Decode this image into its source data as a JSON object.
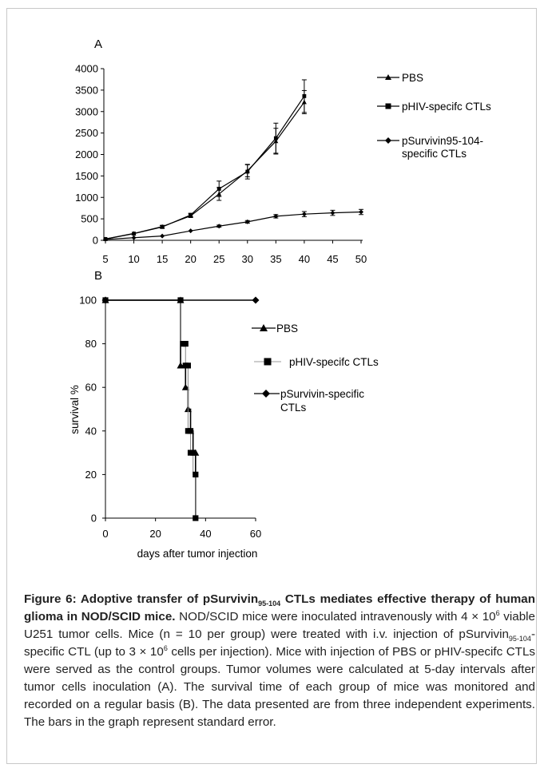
{
  "chart_data": [
    {
      "type": "line",
      "panel_label": "A",
      "x": [
        5,
        10,
        15,
        20,
        25,
        30,
        35,
        40,
        45,
        50
      ],
      "xlim": [
        5,
        50
      ],
      "ylim": [
        0,
        4000
      ],
      "x_ticks": [
        "5",
        "10",
        "15",
        "20",
        "25",
        "30",
        "35",
        "40",
        "45",
        "50"
      ],
      "y_ticks": [
        "0",
        "500",
        "1000",
        "1500",
        "2000",
        "2500",
        "3000",
        "3500",
        "4000"
      ],
      "xlabel": "",
      "ylabel": "",
      "legend_position": "right",
      "grid": false,
      "series": [
        {
          "name": "PBS",
          "marker": "triangle",
          "points": [
            [
              5,
              30
            ],
            [
              10,
              160
            ],
            [
              15,
              320
            ],
            [
              20,
              570
            ],
            [
              25,
              1080
            ],
            [
              30,
              1620
            ],
            [
              35,
              2310
            ],
            [
              40,
              3220
            ]
          ],
          "error": [
            10,
            20,
            30,
            40,
            150,
            140,
            300,
            270
          ]
        },
        {
          "name": "pHIV-specifc CTLs",
          "marker": "square",
          "points": [
            [
              5,
              30
            ],
            [
              10,
              155
            ],
            [
              15,
              310
            ],
            [
              20,
              590
            ],
            [
              25,
              1200
            ],
            [
              30,
              1600
            ],
            [
              35,
              2380
            ],
            [
              40,
              3360
            ]
          ],
          "error": [
            10,
            20,
            30,
            40,
            180,
            170,
            350,
            380
          ]
        },
        {
          "name": "pSurvivin95-104-specific CTLs",
          "marker": "diamond",
          "points": [
            [
              5,
              20
            ],
            [
              10,
              60
            ],
            [
              15,
              100
            ],
            [
              20,
              220
            ],
            [
              25,
              330
            ],
            [
              30,
              430
            ],
            [
              35,
              560
            ],
            [
              40,
              610
            ],
            [
              45,
              640
            ],
            [
              50,
              660
            ]
          ],
          "error": [
            5,
            10,
            15,
            20,
            25,
            30,
            40,
            60,
            60,
            60
          ]
        }
      ]
    },
    {
      "type": "line",
      "panel_label": "B",
      "step": true,
      "xlim": [
        0,
        60
      ],
      "ylim": [
        0,
        100
      ],
      "x_ticks": [
        "0",
        "20",
        "40",
        "60"
      ],
      "y_ticks": [
        "0",
        "20",
        "40",
        "60",
        "80",
        "100"
      ],
      "xlabel": "days after tumor injection",
      "ylabel": "survival %",
      "legend_position": "right",
      "grid": false,
      "series": [
        {
          "name": "PBS",
          "marker": "triangle",
          "points": [
            [
              0,
              100
            ],
            [
              30,
              100
            ],
            [
              30,
              70
            ],
            [
              32,
              70
            ],
            [
              32,
              60
            ],
            [
              33,
              60
            ],
            [
              33,
              50
            ],
            [
              34,
              50
            ],
            [
              34,
              40
            ],
            [
              35,
              40
            ],
            [
              35,
              30
            ],
            [
              36,
              30
            ],
            [
              36,
              0
            ]
          ],
          "marker_points": [
            [
              0,
              100
            ],
            [
              30,
              100
            ],
            [
              30,
              70
            ],
            [
              32,
              60
            ],
            [
              33,
              50
            ],
            [
              34,
              40
            ],
            [
              36,
              30
            ]
          ]
        },
        {
          "name": "pHIV-specifc CTLs",
          "marker": "square",
          "points": [
            [
              0,
              100
            ],
            [
              30,
              100
            ],
            [
              30,
              80
            ],
            [
              32,
              80
            ],
            [
              32,
              70
            ],
            [
              33,
              70
            ],
            [
              33,
              40
            ],
            [
              34,
              40
            ],
            [
              34,
              30
            ],
            [
              35,
              30
            ],
            [
              35,
              20
            ],
            [
              36,
              20
            ],
            [
              36,
              0
            ]
          ],
          "marker_points": [
            [
              0,
              100
            ],
            [
              30,
              100
            ],
            [
              31,
              80
            ],
            [
              32,
              80
            ],
            [
              32,
              70
            ],
            [
              33,
              70
            ],
            [
              33,
              40
            ],
            [
              34,
              40
            ],
            [
              34,
              30
            ],
            [
              35,
              30
            ],
            [
              36,
              20
            ],
            [
              36,
              0
            ]
          ]
        },
        {
          "name": "pSurvivin-specific CTLs",
          "marker": "diamond",
          "points": [
            [
              0,
              100
            ],
            [
              60,
              100
            ]
          ],
          "marker_points": [
            [
              0,
              100
            ],
            [
              60,
              100
            ]
          ]
        }
      ]
    }
  ],
  "legend_a": {
    "pbs": "PBS",
    "phiv": "pHIV-specifc CTLs",
    "psurv_line1": "pSurvivin95-104-",
    "psurv_line2": "specific CTLs"
  },
  "legend_b": {
    "pbs": "PBS",
    "phiv": "pHIV-specifc CTLs",
    "psurv_line1": "pSurvivin-specific",
    "psurv_line2": "CTLs"
  },
  "caption": {
    "title_prefix": "Figure 6: Adoptive transfer of pSurvivin",
    "title_sub": "95-104",
    "title_mid": " CTLs mediates effective therapy of human glioma in NOD/SCID mice.",
    "text_1": " NOD/SCID mice were inoculated intravenously with 4 × 10",
    "sup_1": "6",
    "text_2": " viable U251 tumor cells. Mice (n = 10 per group) were treated with i.v. injection of pSurvivin",
    "sub_2": "95-104",
    "text_3": "-specific CTL (up to 3 × 10",
    "sup_3": "6",
    "text_4": " cells per injection). Mice with injection of PBS or pHIV-specifc CTLs were served as the control groups. Tumor volumes were calculated at 5-day intervals after tumor cells inoculation (A). The survival time of each group of mice was monitored and recorded on a regular basis (B). The data presented are from three independent experiments. The bars in the graph represent standard error."
  },
  "colors": {
    "series_line": "#000000",
    "frame": "#c8c8c8",
    "text": "#222222"
  }
}
